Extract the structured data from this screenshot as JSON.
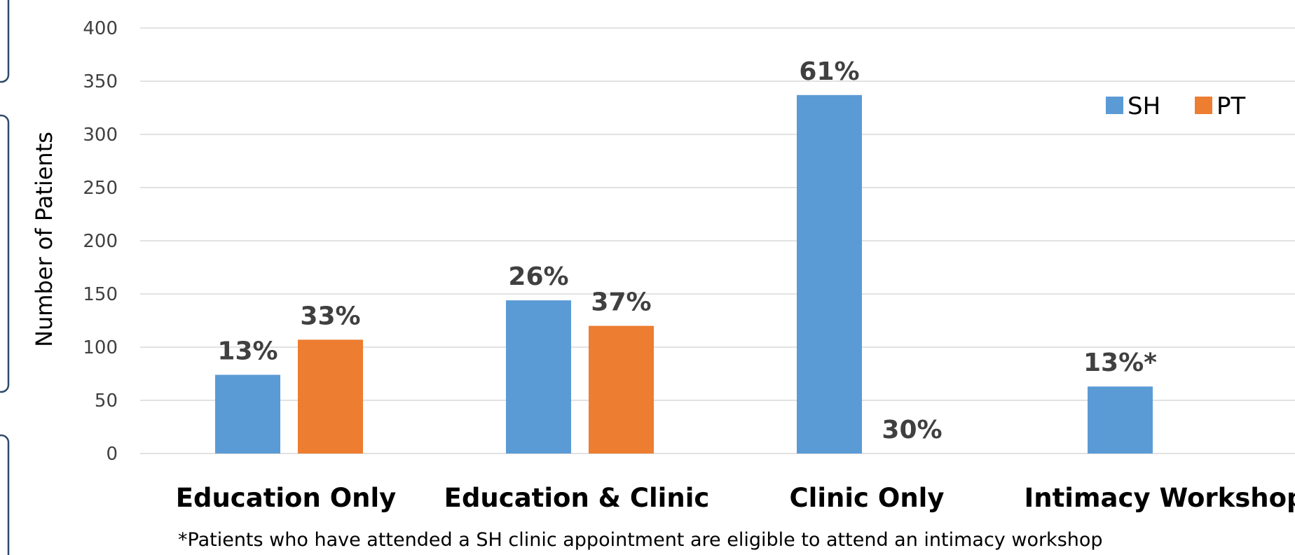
{
  "chart_data": {
    "type": "bar",
    "title": "",
    "xlabel": "",
    "ylabel": "Number of Patients",
    "ylim": [
      0,
      400
    ],
    "yticks": [
      0,
      50,
      100,
      150,
      200,
      250,
      300,
      350,
      400
    ],
    "grid": true,
    "legend_position": "top-right",
    "categories": [
      "Education Only",
      "Education & Clinic",
      "Clinic Only",
      "Intimacy Workshop"
    ],
    "series": [
      {
        "name": "SH",
        "color": "#5b9bd5",
        "values": [
          74,
          144,
          337,
          63
        ],
        "labels": [
          "13%",
          "26%",
          "61%",
          "13%*"
        ]
      },
      {
        "name": "PT",
        "color": "#ed7d31",
        "values": [
          107,
          120,
          null,
          null
        ],
        "labels": [
          "33%",
          "37%",
          "30%",
          ""
        ]
      }
    ],
    "footnote": "*Patients who have attended a SH clinic appointment are eligible to attend an intimacy workshop"
  }
}
